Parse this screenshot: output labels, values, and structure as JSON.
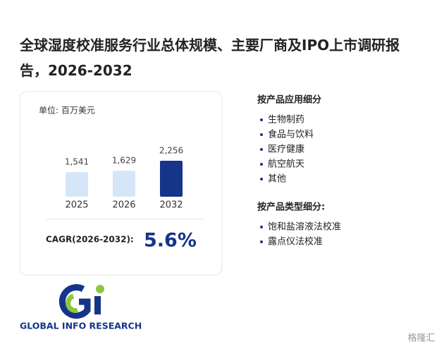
{
  "chart_data": {
    "type": "bar",
    "title": "全球湿度校准服务行业总体规模、主要厂商及IPO上市调研报告，2026-2032",
    "unit": "单位: 百万美元",
    "categories": [
      "2025",
      "2026",
      "2032"
    ],
    "values": [
      1541,
      1629,
      2256
    ],
    "value_labels": [
      "1,541",
      "1,629",
      "2,256"
    ],
    "colors": [
      "#d5e6f8",
      "#d5e6f8",
      "#15348a"
    ],
    "cagr_label": "CAGR(2026-2032):",
    "cagr_value": "5.6%"
  },
  "segments": [
    {
      "title": "按产品应用细分",
      "items": [
        "生物制药",
        "食品与饮料",
        "医疗健康",
        "航空航天",
        "其他"
      ]
    },
    {
      "title": "按产品类型细分:",
      "items": [
        "饱和盐溶液法校准",
        "露点仪法校准"
      ]
    }
  ],
  "logo": "GLOBAL INFO RESEARCH",
  "brand": "格隆汇"
}
